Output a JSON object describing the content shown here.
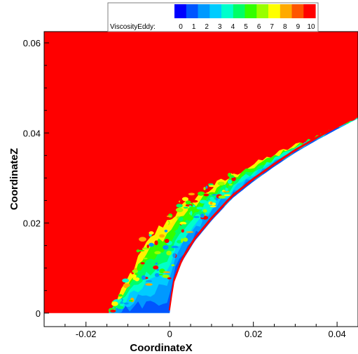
{
  "chart_data": {
    "type": "heatmap",
    "title": "",
    "xlabel": "CoordinateX",
    "ylabel": "CoordinateZ",
    "xlim": [
      -0.03,
      0.045
    ],
    "ylim": [
      -0.003,
      0.0625
    ],
    "x_ticks": [
      -0.02,
      0,
      0.02,
      0.04
    ],
    "x_tick_labels": [
      "-0.02",
      "0",
      "0.02",
      "0.04"
    ],
    "y_ticks": [
      0,
      0.02,
      0.04,
      0.06
    ],
    "y_tick_labels": [
      "0",
      "0.02",
      "0.04",
      "0.06"
    ],
    "grid": false,
    "variable": "ViscosityEddy",
    "legend": {
      "title": "ViscosityEddy:",
      "placement": "top",
      "levels": [
        "0",
        "1",
        "2",
        "3",
        "4",
        "5",
        "6",
        "7",
        "8",
        "9",
        "10"
      ],
      "colors": [
        "#0000ff",
        "#0055ff",
        "#0099ff",
        "#00ccff",
        "#00ffcc",
        "#00ff66",
        "#33ff00",
        "#99ff00",
        "#ffff00",
        "#ffaa00",
        "#ff5500",
        "#ff0000"
      ]
    },
    "background_value": 10,
    "body_surface": {
      "description_values": "blunt body nose at x=0, z=0; surface z ≈ 0.0445*sqrt(x/0.045)",
      "x": [
        0,
        0.001,
        0.003,
        0.006,
        0.01,
        0.015,
        0.02,
        0.025,
        0.03,
        0.035,
        0.04,
        0.045
      ],
      "z": [
        0,
        0.0066,
        0.0115,
        0.016,
        0.0205,
        0.0255,
        0.0292,
        0.0325,
        0.0356,
        0.0383,
        0.0408,
        0.0432
      ]
    },
    "shear_layer": {
      "x": [
        -0.0145,
        -0.012,
        -0.009,
        -0.006,
        -0.003,
        0,
        0.003,
        0.006,
        0.01,
        0.015,
        0.02,
        0.025,
        0.03,
        0.035,
        0.04,
        0.045
      ],
      "z_outer": [
        0,
        0.0035,
        0.0095,
        0.0145,
        0.0185,
        0.021,
        0.0235,
        0.0255,
        0.0278,
        0.0305,
        0.033,
        0.0352,
        0.0372,
        0.0392,
        0.041,
        0.0428
      ]
    }
  },
  "colors": {
    "background_field": "#ff0000",
    "body": "#ffffff",
    "frame": "#000000"
  }
}
